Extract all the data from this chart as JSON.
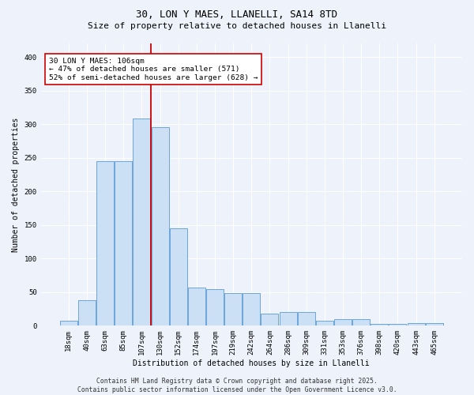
{
  "title1": "30, LON Y MAES, LLANELLI, SA14 8TD",
  "title2": "Size of property relative to detached houses in Llanelli",
  "xlabel": "Distribution of detached houses by size in Llanelli",
  "ylabel": "Number of detached properties",
  "bar_labels": [
    "18sqm",
    "40sqm",
    "63sqm",
    "85sqm",
    "107sqm",
    "130sqm",
    "152sqm",
    "174sqm",
    "197sqm",
    "219sqm",
    "242sqm",
    "264sqm",
    "286sqm",
    "309sqm",
    "331sqm",
    "353sqm",
    "376sqm",
    "398sqm",
    "420sqm",
    "443sqm",
    "465sqm"
  ],
  "bar_values": [
    7,
    38,
    245,
    245,
    308,
    295,
    145,
    57,
    55,
    48,
    48,
    18,
    20,
    20,
    7,
    10,
    10,
    3,
    3,
    4,
    4
  ],
  "bar_color": "#cce0f5",
  "bar_edge_color": "#5b9bd5",
  "vline_x_index": 4,
  "vline_color": "#cc0000",
  "annotation_text": "30 LON Y MAES: 106sqm\n← 47% of detached houses are smaller (571)\n52% of semi-detached houses are larger (628) →",
  "annotation_box_color": "#ffffff",
  "annotation_box_edge": "#cc0000",
  "footer": "Contains HM Land Registry data © Crown copyright and database right 2025.\nContains public sector information licensed under the Open Government Licence v3.0.",
  "ylim": [
    0,
    420
  ],
  "yticks": [
    0,
    50,
    100,
    150,
    200,
    250,
    300,
    350,
    400
  ],
  "background_color": "#eef2fb",
  "plot_background": "#eef2fb",
  "title1_fontsize": 9,
  "title2_fontsize": 8,
  "axis_label_fontsize": 7,
  "tick_fontsize": 6.5
}
